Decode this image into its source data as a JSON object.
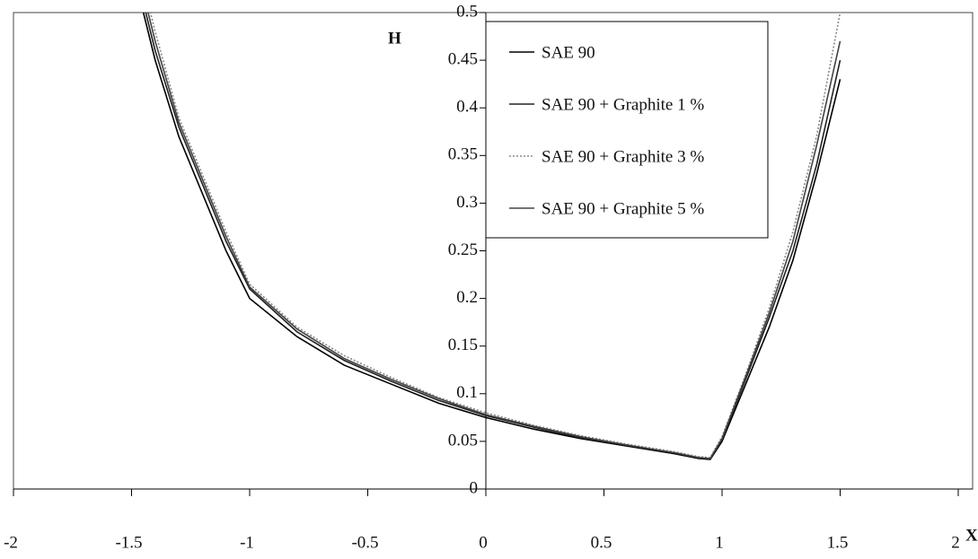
{
  "chart_data": {
    "type": "line",
    "x_label": "X",
    "y_label": "H",
    "x": [
      -1.45,
      -1.4,
      -1.3,
      -1.2,
      -1.1,
      -1,
      -0.8,
      -0.6,
      -0.4,
      -0.2,
      0,
      0.2,
      0.4,
      0.6,
      0.8,
      0.9,
      0.95,
      1,
      1.1,
      1.2,
      1.3,
      1.4,
      1.5
    ],
    "series": [
      {
        "name": "SAE 90",
        "color": "#000000",
        "style": "solid",
        "values": [
          0.5,
          0.45,
          0.37,
          0.31,
          0.25,
          0.2,
          0.16,
          0.13,
          0.11,
          0.09,
          0.075,
          0.063,
          0.053,
          0.045,
          0.037,
          0.032,
          0.031,
          0.05,
          0.11,
          0.17,
          0.24,
          0.33,
          0.43
        ]
      },
      {
        "name": "SAE 90 + Graphite 1 %",
        "color": "#222222",
        "style": "solid",
        "values": [
          0.51,
          0.46,
          0.38,
          0.32,
          0.26,
          0.21,
          0.165,
          0.135,
          0.113,
          0.093,
          0.077,
          0.065,
          0.054,
          0.046,
          0.038,
          0.033,
          0.032,
          0.052,
          0.115,
          0.18,
          0.25,
          0.34,
          0.45
        ]
      },
      {
        "name": "SAE 90 + Graphite 3 %",
        "color": "#888888",
        "style": "dotted",
        "values": [
          0.53,
          0.48,
          0.39,
          0.33,
          0.27,
          0.215,
          0.17,
          0.14,
          0.117,
          0.096,
          0.08,
          0.067,
          0.056,
          0.047,
          0.039,
          0.034,
          0.033,
          0.055,
          0.12,
          0.19,
          0.27,
          0.37,
          0.5
        ]
      },
      {
        "name": "SAE 90 + Graphite 5 %",
        "color": "#444444",
        "style": "solid",
        "values": [
          0.52,
          0.47,
          0.385,
          0.325,
          0.265,
          0.212,
          0.168,
          0.137,
          0.115,
          0.095,
          0.078,
          0.066,
          0.055,
          0.046,
          0.038,
          0.033,
          0.032,
          0.053,
          0.118,
          0.185,
          0.26,
          0.36,
          0.47
        ]
      }
    ],
    "xlim": [
      -2,
      2
    ],
    "xticks": [
      -2,
      -1.5,
      -1,
      -0.5,
      0,
      0.5,
      1,
      1.5,
      2
    ],
    "ylim": [
      0,
      0.5
    ],
    "yticks": [
      0,
      0.05,
      0.1,
      0.15,
      0.2,
      0.25,
      0.3,
      0.35,
      0.4,
      0.45,
      0.5
    ],
    "grid": false,
    "legend": "top-center"
  }
}
